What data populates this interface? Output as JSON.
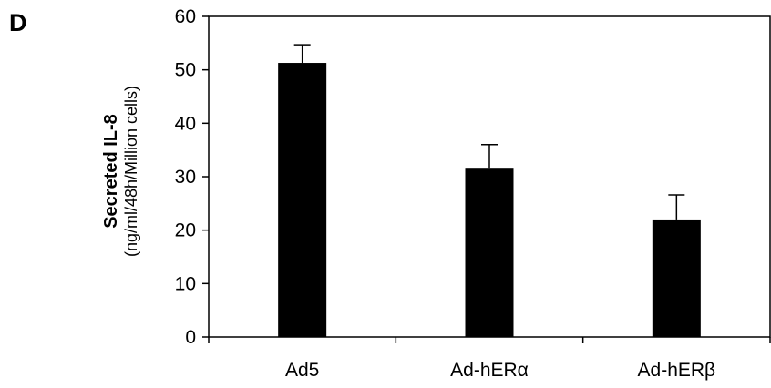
{
  "panel_label": "D",
  "chart_data": {
    "type": "bar",
    "title": "",
    "ylabel": "Secreted IL-8",
    "ylabel_unit": "(ng/ml/48h/Million cells)",
    "xlabel": "",
    "categories": [
      "Ad5",
      "Ad-hERα",
      "Ad-hERβ"
    ],
    "values": [
      51.3,
      31.5,
      22.0
    ],
    "error_upper": [
      3.4,
      4.5,
      4.6
    ],
    "ylim": [
      0,
      60
    ],
    "yticks": [
      "0",
      "10",
      "20",
      "30",
      "40",
      "50",
      "60"
    ],
    "grid": false,
    "bar_color": "#000000"
  }
}
